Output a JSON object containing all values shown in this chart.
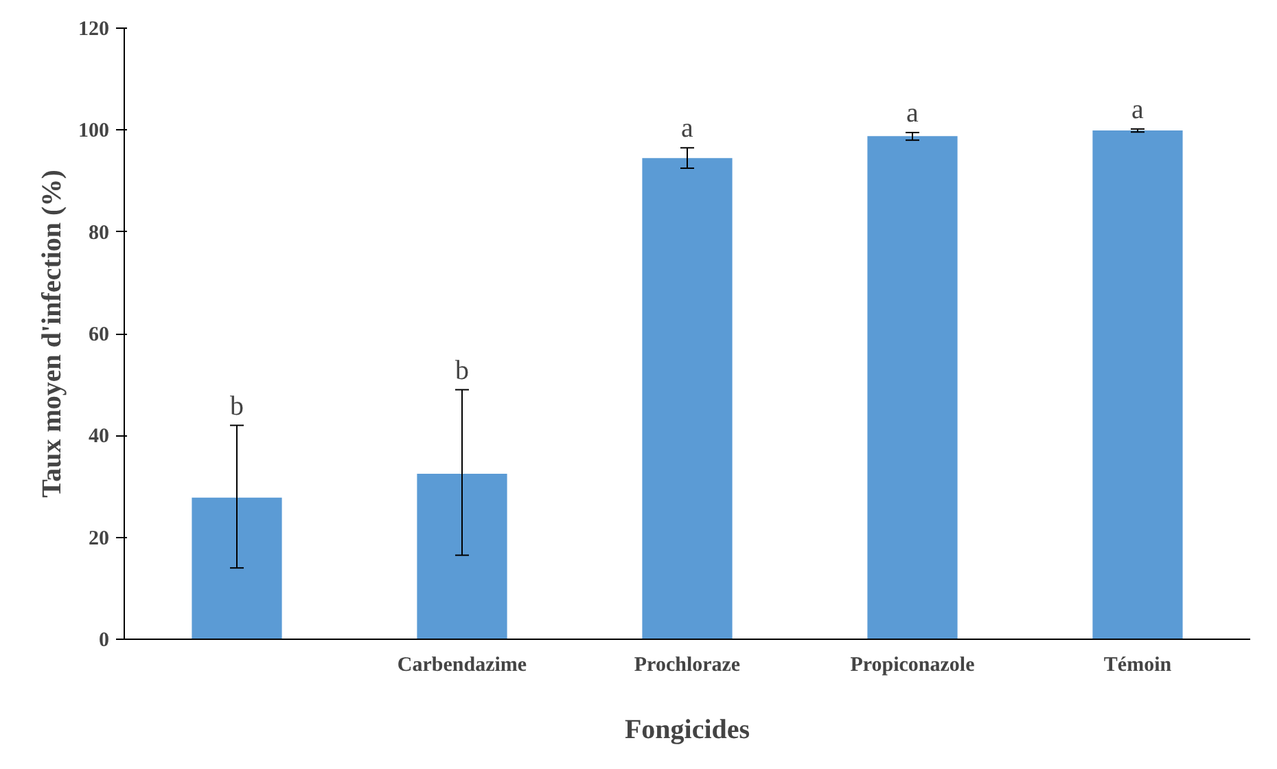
{
  "chart_data": {
    "type": "bar",
    "xlabel": "Fongicides",
    "ylabel": "Taux moyen d'infection (%)",
    "categories": [
      null,
      "Carbendazime",
      "Prochloraze",
      "Propiconazole",
      "Témoin"
    ],
    "values": [
      27.8,
      32.5,
      94.5,
      98.8,
      99.9
    ],
    "errors": [
      [
        14,
        42
      ],
      [
        16.5,
        49
      ],
      [
        92.5,
        96.5
      ],
      [
        98,
        99.5
      ],
      [
        99.6,
        100.2
      ]
    ],
    "color": "#5b9bd5",
    "ylim": [
      0,
      120
    ],
    "yticks": [
      0,
      20,
      40,
      60,
      80,
      100,
      120
    ],
    "grid": false,
    "annotations": [
      {
        "text": "b",
        "y": 42
      },
      {
        "text": "b",
        "x": "Carbendazime",
        "y": 49
      },
      {
        "text": "a",
        "x": "Prochloraze",
        "y": 96.5
      },
      {
        "text": "a",
        "x": "Propiconazole",
        "y": 99.5
      },
      {
        "text": "a",
        "x": "Témoin",
        "y": 100.2
      }
    ]
  }
}
